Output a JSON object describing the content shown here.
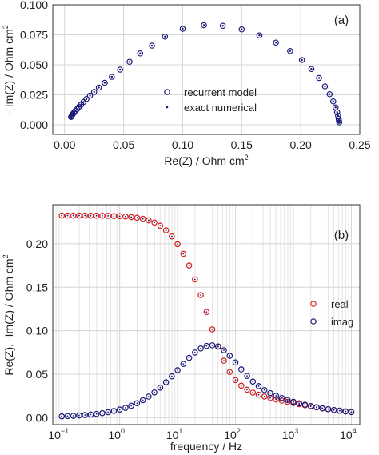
{
  "chart_data": [
    {
      "type": "scatter",
      "panel_label": "(a)",
      "xlabel": "Re(Z) / Ohm cm²",
      "ylabel": "- Im(Z) / Ohm cm²",
      "xlim": [
        -0.01,
        0.25
      ],
      "ylim": [
        -0.008,
        0.1
      ],
      "xticks": [
        0.0,
        0.05,
        0.1,
        0.15,
        0.2,
        0.25
      ],
      "xtick_labels": [
        "0.00",
        "0.05",
        "0.10",
        "0.15",
        "0.20",
        "0.25"
      ],
      "yticks": [
        0.0,
        0.025,
        0.05,
        0.075,
        0.1
      ],
      "ytick_labels": [
        "0.000",
        "0.025",
        "0.050",
        "0.075",
        "0.100"
      ],
      "grid": true,
      "legend_position": "center",
      "series": [
        {
          "name": "recurrent model",
          "marker": "open-circle",
          "color": "#1a1a7a",
          "x": [
            0.0055,
            0.0058,
            0.0063,
            0.007,
            0.008,
            0.009,
            0.0105,
            0.012,
            0.014,
            0.016,
            0.0185,
            0.0215,
            0.025,
            0.029,
            0.034,
            0.04,
            0.047,
            0.055,
            0.064,
            0.074,
            0.085,
            0.1,
            0.118,
            0.134,
            0.15,
            0.165,
            0.179,
            0.191,
            0.201,
            0.209,
            0.2155,
            0.2205,
            0.2245,
            0.2275,
            0.2295,
            0.2308,
            0.2316,
            0.2321,
            0.2324,
            0.2326
          ],
          "y": [
            0.0065,
            0.0072,
            0.008,
            0.009,
            0.0102,
            0.0115,
            0.013,
            0.0148,
            0.0168,
            0.019,
            0.0215,
            0.0243,
            0.0274,
            0.031,
            0.035,
            0.04,
            0.046,
            0.0525,
            0.0595,
            0.066,
            0.0735,
            0.08,
            0.083,
            0.0825,
            0.0795,
            0.0745,
            0.0685,
            0.0615,
            0.054,
            0.0465,
            0.039,
            0.032,
            0.0255,
            0.0195,
            0.0145,
            0.0105,
            0.0075,
            0.005,
            0.0033,
            0.002
          ]
        },
        {
          "name": "exact numerical",
          "marker": "dot",
          "color": "#1a1a7a",
          "x": [
            0.0055,
            0.0058,
            0.0063,
            0.007,
            0.008,
            0.009,
            0.0105,
            0.012,
            0.014,
            0.016,
            0.0185,
            0.0215,
            0.025,
            0.029,
            0.034,
            0.04,
            0.047,
            0.055,
            0.064,
            0.074,
            0.085,
            0.1,
            0.118,
            0.134,
            0.15,
            0.165,
            0.179,
            0.191,
            0.201,
            0.209,
            0.2155,
            0.2205,
            0.2245,
            0.2275,
            0.2295,
            0.2308,
            0.2316,
            0.2321,
            0.2324,
            0.2326
          ],
          "y": [
            0.0065,
            0.0072,
            0.008,
            0.009,
            0.0102,
            0.0115,
            0.013,
            0.0148,
            0.0168,
            0.019,
            0.0215,
            0.0243,
            0.0274,
            0.031,
            0.035,
            0.04,
            0.046,
            0.0525,
            0.0595,
            0.066,
            0.0735,
            0.08,
            0.083,
            0.0825,
            0.0795,
            0.0745,
            0.0685,
            0.0615,
            0.054,
            0.0465,
            0.039,
            0.032,
            0.0255,
            0.0195,
            0.0145,
            0.0105,
            0.0075,
            0.005,
            0.0033,
            0.002
          ]
        }
      ]
    },
    {
      "type": "scatter",
      "panel_label": "(b)",
      "xlabel": "frequency / Hz",
      "ylabel": "Re(Z), -Im(Z) / Ohm cm²",
      "xscale": "log",
      "xlim": [
        0.07,
        14000
      ],
      "ylim": [
        -0.008,
        0.245
      ],
      "xticks": [
        0.1,
        1,
        10,
        100,
        1000,
        10000
      ],
      "xtick_labels": [
        "10",
        "10",
        "10",
        "10",
        "10",
        "10"
      ],
      "xtick_exponents": [
        "−1",
        "0",
        "1",
        "2",
        "3",
        "4"
      ],
      "yticks": [
        0.0,
        0.05,
        0.1,
        0.15,
        0.2
      ],
      "ytick_labels": [
        "0.00",
        "0.05",
        "0.10",
        "0.15",
        "0.20"
      ],
      "grid": true,
      "legend_position": "center-right",
      "series": [
        {
          "name": "real",
          "marker": "open-circle",
          "color": "#d42020",
          "x": [
            0.1,
            0.1259,
            0.1585,
            0.1995,
            0.2512,
            0.3162,
            0.3981,
            0.5012,
            0.631,
            0.7943,
            1.0,
            1.259,
            1.585,
            1.995,
            2.512,
            3.162,
            3.981,
            5.012,
            6.31,
            7.943,
            10.0,
            12.59,
            15.85,
            19.95,
            25.12,
            31.62,
            39.81,
            50.12,
            63.1,
            79.43,
            100.0,
            125.9,
            158.5,
            199.5,
            251.2,
            316.2,
            398.1,
            501.2,
            631.0,
            794.3,
            1000.0,
            1259.0,
            1585.0,
            1995.0,
            2512.0,
            3162.0,
            3981.0,
            5012.0,
            6310.0,
            7943.0,
            10000.0
          ],
          "y": [
            0.2325,
            0.2325,
            0.2325,
            0.2325,
            0.2325,
            0.2324,
            0.2324,
            0.2323,
            0.2322,
            0.232,
            0.2318,
            0.2314,
            0.2308,
            0.23,
            0.2288,
            0.227,
            0.2245,
            0.2208,
            0.2155,
            0.2085,
            0.1995,
            0.1885,
            0.175,
            0.159,
            0.141,
            0.1215,
            0.1015,
            0.082,
            0.0655,
            0.0525,
            0.0432,
            0.0368,
            0.0322,
            0.0289,
            0.0264,
            0.0243,
            0.0226,
            0.021,
            0.0196,
            0.0182,
            0.0168,
            0.0155,
            0.0142,
            0.013,
            0.0118,
            0.0107,
            0.0097,
            0.0088,
            0.008,
            0.0072,
            0.0065
          ]
        },
        {
          "name": "imag",
          "marker": "open-circle",
          "color": "#1a1a7a",
          "x": [
            0.1,
            0.1259,
            0.1585,
            0.1995,
            0.2512,
            0.3162,
            0.3981,
            0.5012,
            0.631,
            0.7943,
            1.0,
            1.259,
            1.585,
            1.995,
            2.512,
            3.162,
            3.981,
            5.012,
            6.31,
            7.943,
            10.0,
            12.59,
            15.85,
            19.95,
            25.12,
            31.62,
            39.81,
            50.12,
            63.1,
            79.43,
            100.0,
            125.9,
            158.5,
            199.5,
            251.2,
            316.2,
            398.1,
            501.2,
            631.0,
            794.3,
            1000.0,
            1259.0,
            1585.0,
            1995.0,
            2512.0,
            3162.0,
            3981.0,
            5012.0,
            6310.0,
            7943.0,
            10000.0
          ],
          "y": [
            0.0015,
            0.0018,
            0.0021,
            0.0025,
            0.003,
            0.0036,
            0.0043,
            0.0052,
            0.0063,
            0.0077,
            0.0093,
            0.0113,
            0.0137,
            0.0166,
            0.0201,
            0.0242,
            0.029,
            0.0345,
            0.0407,
            0.0475,
            0.0546,
            0.0618,
            0.0688,
            0.0749,
            0.0796,
            0.0825,
            0.0832,
            0.0816,
            0.0775,
            0.0712,
            0.0635,
            0.0555,
            0.048,
            0.0415,
            0.0362,
            0.0318,
            0.0282,
            0.0252,
            0.0226,
            0.0203,
            0.0183,
            0.0165,
            0.0149,
            0.0134,
            0.0121,
            0.0109,
            0.0098,
            0.0088,
            0.0079,
            0.0071,
            0.0064
          ]
        }
      ]
    }
  ]
}
